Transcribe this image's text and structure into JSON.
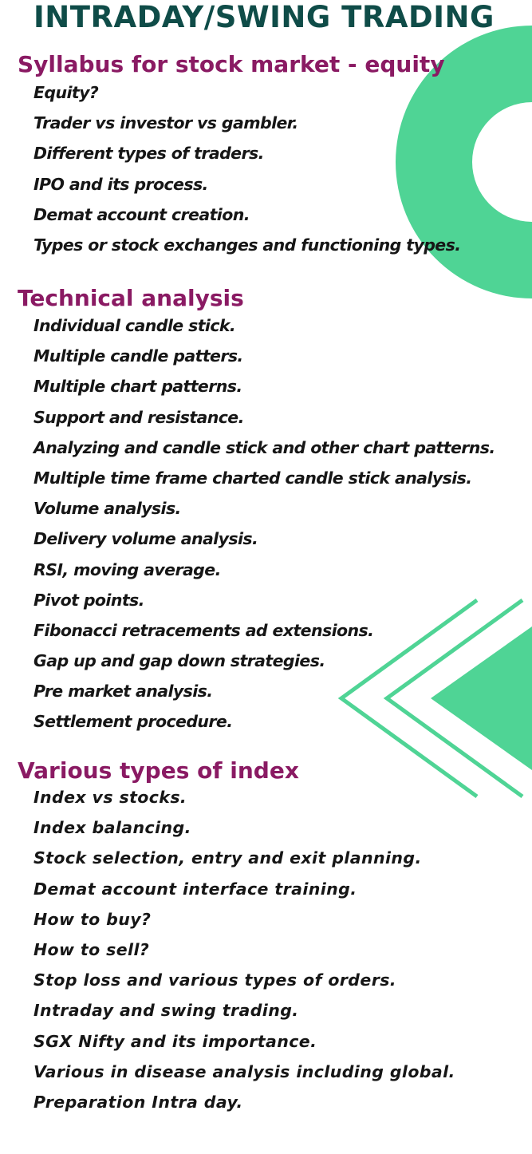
{
  "title": "INTRADAY/SWING TRADING",
  "colors": {
    "title": "#0f4c48",
    "heading": "#8a1a63",
    "text": "#161616",
    "accent_green": "#4fd495"
  },
  "decorations": [
    "green-ring-shape",
    "green-chevron-arrows"
  ],
  "sections": [
    {
      "heading": "Syllabus for stock market - equity",
      "items": [
        "Equity?",
        "Trader vs investor vs gambler.",
        "Different types of traders.",
        "IPO and its process.",
        "Demat account creation.",
        "Types or stock exchanges and functioning types."
      ]
    },
    {
      "heading": "Technical analysis",
      "items": [
        "Individual candle stick.",
        "Multiple candle patters.",
        "Multiple chart patterns.",
        "Support and resistance.",
        "Analyzing and candle stick and other chart patterns.",
        "Multiple time frame charted candle stick analysis.",
        "Volume analysis.",
        "Delivery volume analysis.",
        "RSI, moving average.",
        "Pivot points.",
        "Fibonacci retracements ad extensions.",
        "Gap up and gap down strategies.",
        "Pre market analysis.",
        "Settlement procedure."
      ]
    },
    {
      "heading": "Various types of index",
      "items": [
        "Index vs stocks.",
        "Index balancing.",
        "Stock selection, entry and exit planning.",
        "Demat account interface training.",
        "How to buy?",
        "How to sell?",
        "Stop loss and various types of orders.",
        "Intraday and swing trading.",
        "SGX Nifty and its importance.",
        "Various in disease analysis including global.",
        "Preparation Intra day."
      ]
    }
  ]
}
